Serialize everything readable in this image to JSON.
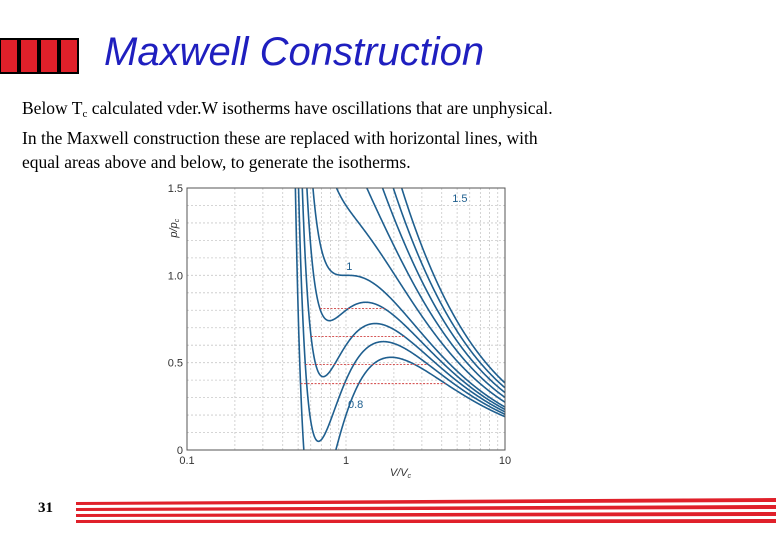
{
  "slide": {
    "title": "Maxwell Construction",
    "lines": [
      [
        "Below T",
        "c",
        " calculated vder.W isotherms have oscillations that are unphysical."
      ],
      [
        "In the Maxwell construction these are replaced with horizontal lines, with"
      ],
      [
        "equal areas above and below, to generate the isotherms."
      ]
    ],
    "page_number": "31"
  },
  "colors": {
    "title": "#1f1fbf",
    "accent_red": "#e0202a",
    "curve": "#1f5f8f",
    "maxwell_line": "#d04040"
  },
  "chart_data": {
    "type": "line",
    "title": "",
    "xlabel": "V/Vc",
    "ylabel": "p/pc",
    "xscale": "log",
    "xlim": [
      0.1,
      10
    ],
    "ylim": [
      0,
      1.5
    ],
    "x_ticks": [
      "0.1",
      "1",
      "10"
    ],
    "y_ticks": [
      "0",
      "0.5",
      "1.0",
      "1.5"
    ],
    "grid": true,
    "isotherm_labels": [
      "1.5",
      "1",
      "0.8"
    ],
    "isotherm_temperatures": [
      1.5,
      1.4,
      1.3,
      1.2,
      1.1,
      1.0,
      0.95,
      0.9,
      0.85,
      0.8
    ],
    "maxwell_pressures": [
      0.81,
      0.65,
      0.49,
      0.38
    ]
  }
}
